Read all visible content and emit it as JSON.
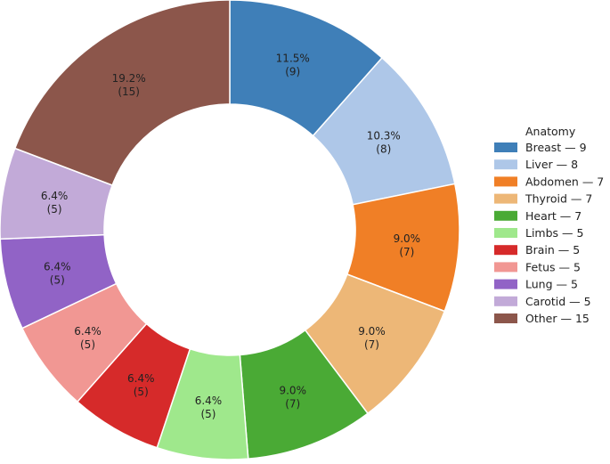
{
  "chart_data": {
    "type": "pie",
    "style": "donut",
    "categories": [
      "Breast",
      "Liver",
      "Abdomen",
      "Thyroid",
      "Heart",
      "Limbs",
      "Brain",
      "Fetus",
      "Lung",
      "Carotid",
      "Other"
    ],
    "values": [
      9,
      8,
      7,
      7,
      7,
      5,
      5,
      5,
      5,
      5,
      15
    ],
    "percent_labels": [
      "11.5%",
      "10.3%",
      "9.0%",
      "9.0%",
      "9.0%",
      "6.4%",
      "6.4%",
      "6.4%",
      "6.4%",
      "6.4%",
      "19.2%"
    ],
    "count_labels": [
      "(9)",
      "(8)",
      "(7)",
      "(7)",
      "(7)",
      "(5)",
      "(5)",
      "(5)",
      "(5)",
      "(5)",
      "(15)"
    ],
    "colors": [
      "#3f7fb8",
      "#aec7e8",
      "#f07f26",
      "#edb777",
      "#4aaa35",
      "#9fe88c",
      "#d62a2a",
      "#f19793",
      "#9163c6",
      "#c2aad8",
      "#8c564b"
    ],
    "legend": {
      "title": "Anatomy",
      "placement": "center-right",
      "entries": [
        "Breast — 9",
        "Liver — 8",
        "Abdomen — 7",
        "Thyroid — 7",
        "Heart — 7",
        "Limbs — 5",
        "Brain — 5",
        "Fetus — 5",
        "Lung — 5",
        "Carotid — 5",
        "Other — 15"
      ]
    },
    "start_angle": "top (12 o'clock)",
    "direction": "clockwise"
  }
}
